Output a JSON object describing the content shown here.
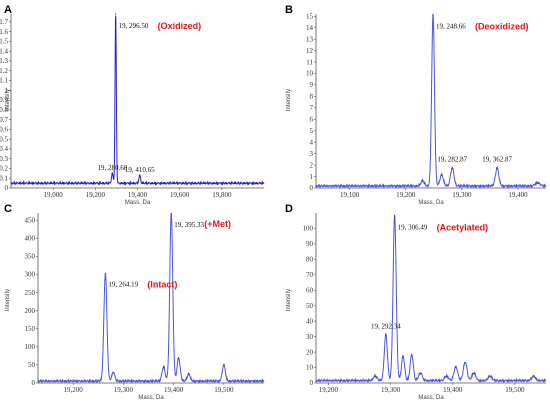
{
  "colors": {
    "line": "#2222cc",
    "line_light": "#4a55e0",
    "annotation": "#e8141b",
    "axis": "#555555"
  },
  "chart_data": [
    {
      "panel": "A",
      "type": "line",
      "title": "",
      "xlabel": "Mass, Da",
      "ylabel": "Intensity",
      "xlim": [
        18800,
        20000
      ],
      "ylim": [
        0,
        1.78
      ],
      "x_ticks": [
        19000,
        19200,
        19400,
        19600,
        19800
      ],
      "x_tick_labels": [
        "19,000",
        "19,200",
        "19,400",
        "19,600",
        "19,800"
      ],
      "y_ticks": [
        0,
        0.1,
        0.2,
        0.3,
        0.4,
        0.5,
        0.6,
        0.7,
        0.8,
        0.9,
        1.0,
        1.1,
        1.2,
        1.3,
        1.4,
        1.5,
        1.6,
        1.7
      ],
      "y_tick_labels": [
        "0",
        "0.1",
        "0.2",
        "0.3",
        "0.4",
        "0.5",
        "0.6",
        "0.7",
        "0.8",
        "0.9",
        "1",
        "1.1",
        "1.2",
        "1.3",
        "1.4",
        "1.5",
        "1.6",
        "1.7"
      ],
      "baseline": 0.04,
      "peaks": [
        {
          "x": 19280.68,
          "y": 0.1,
          "width": 4
        },
        {
          "x": 19296.5,
          "y": 1.76,
          "width": 3
        },
        {
          "x": 19410.65,
          "y": 0.08,
          "width": 4
        }
      ],
      "peak_labels": [
        {
          "text": "19, 296.50",
          "x": 19296.5,
          "y": 1.76
        },
        {
          "text": "19, 280.68",
          "x": 19280.68,
          "y": 0.1
        },
        {
          "text": "19, 410.65",
          "x": 19410.65,
          "y": 0.08
        }
      ],
      "annotation": {
        "text": "(Oxidized)",
        "x": 19296.5,
        "y": 1.76
      }
    },
    {
      "panel": "B",
      "type": "line",
      "title": "",
      "xlabel": "Mass, Da",
      "ylabel": "Intensity",
      "xlim": [
        19040,
        19450
      ],
      "ylim": [
        0,
        15.2
      ],
      "x_ticks": [
        19100,
        19200,
        19300,
        19400
      ],
      "x_tick_labels": [
        "19,100",
        "19,200",
        "19,300",
        "19,400"
      ],
      "y_ticks": [
        0,
        1,
        2,
        3,
        4,
        5,
        6,
        7,
        8,
        9,
        10,
        11,
        12,
        13,
        14,
        15
      ],
      "y_tick_labels": [
        "0",
        "1",
        "2",
        "3",
        "4",
        "5",
        "6",
        "7",
        "8",
        "9",
        "10",
        "11",
        "12",
        "13",
        "14",
        "15"
      ],
      "baseline": 0.1,
      "peaks": [
        {
          "x": 19230,
          "y": 0.5,
          "width": 3
        },
        {
          "x": 19248.66,
          "y": 15.0,
          "width": 2.5
        },
        {
          "x": 19264,
          "y": 1.0,
          "width": 3
        },
        {
          "x": 19282.87,
          "y": 1.6,
          "width": 3
        },
        {
          "x": 19362.87,
          "y": 1.6,
          "width": 3
        },
        {
          "x": 19435,
          "y": 0.3,
          "width": 4
        }
      ],
      "peak_labels": [
        {
          "text": "19, 248.66",
          "x": 19248.66,
          "y": 15.0
        },
        {
          "text": "19, 282.87",
          "x": 19282.87,
          "y": 1.6
        },
        {
          "text": "19, 362.87",
          "x": 19362.87,
          "y": 1.6
        }
      ],
      "annotation": {
        "text": "(Deoxidized)",
        "x": 19248.66,
        "y": 15.0
      }
    },
    {
      "panel": "C",
      "type": "line",
      "title": "",
      "xlabel": "Mass, Da",
      "ylabel": "Intensity",
      "xlim": [
        19130,
        19580
      ],
      "ylim": [
        0,
        470
      ],
      "x_ticks": [
        19200,
        19300,
        19400,
        19500
      ],
      "x_tick_labels": [
        "19,200",
        "19,300",
        "19,400",
        "19,500"
      ],
      "y_ticks": [
        0,
        50,
        100,
        150,
        200,
        250,
        300,
        350,
        400,
        450
      ],
      "y_tick_labels": [
        "0",
        "50",
        "100",
        "150",
        "200",
        "250",
        "300",
        "350",
        "400",
        "450"
      ],
      "baseline": 3,
      "peaks": [
        {
          "x": 19264.19,
          "y": 300,
          "width": 3
        },
        {
          "x": 19280,
          "y": 25,
          "width": 3
        },
        {
          "x": 19380,
          "y": 40,
          "width": 3
        },
        {
          "x": 19395.33,
          "y": 465,
          "width": 3
        },
        {
          "x": 19410,
          "y": 65,
          "width": 3
        },
        {
          "x": 19430,
          "y": 20,
          "width": 3
        },
        {
          "x": 19500,
          "y": 45,
          "width": 3
        }
      ],
      "peak_labels": [
        {
          "text": "19, 264.19",
          "x": 19264.19,
          "y": 300
        },
        {
          "text": "19, 395.33",
          "x": 19395.33,
          "y": 465
        }
      ],
      "annotation_labels": [
        {
          "text": "(Intact)",
          "x": 19264.19,
          "y": 300
        },
        {
          "text": "(+Met)",
          "x": 19395.33,
          "y": 465
        }
      ]
    },
    {
      "panel": "D",
      "type": "line",
      "title": "",
      "xlabel": "Mass, Da",
      "ylabel": "Intensity",
      "xlim": [
        19180,
        19550
      ],
      "ylim": [
        0,
        110
      ],
      "x_ticks": [
        19200,
        19300,
        19400,
        19500
      ],
      "x_tick_labels": [
        "19,200",
        "19,300",
        "19,400",
        "19,500"
      ],
      "y_ticks": [
        0,
        10,
        20,
        30,
        40,
        50,
        60,
        70,
        80,
        90,
        100
      ],
      "y_tick_labels": [
        "0",
        "10",
        "20",
        "30",
        "40",
        "50",
        "60",
        "70",
        "80",
        "90",
        "100"
      ],
      "baseline": 1,
      "peaks": [
        {
          "x": 19275,
          "y": 3,
          "width": 3
        },
        {
          "x": 19292.34,
          "y": 30,
          "width": 2.5
        },
        {
          "x": 19306.49,
          "y": 107,
          "width": 2.5
        },
        {
          "x": 19320,
          "y": 16,
          "width": 2.5
        },
        {
          "x": 19334,
          "y": 17,
          "width": 2.5
        },
        {
          "x": 19348,
          "y": 5,
          "width": 3
        },
        {
          "x": 19390,
          "y": 3,
          "width": 3
        },
        {
          "x": 19405,
          "y": 9,
          "width": 3
        },
        {
          "x": 19420,
          "y": 12,
          "width": 3
        },
        {
          "x": 19434,
          "y": 5,
          "width": 3
        },
        {
          "x": 19460,
          "y": 3,
          "width": 3
        },
        {
          "x": 19530,
          "y": 3,
          "width": 3
        }
      ],
      "peak_labels": [
        {
          "text": "19, 306.49",
          "x": 19306.49,
          "y": 107
        },
        {
          "text": "19, 292.34",
          "x": 19292.34,
          "y": 30
        }
      ],
      "annotation": {
        "text": "(Acetylated)",
        "x": 19306.49,
        "y": 107
      }
    }
  ]
}
